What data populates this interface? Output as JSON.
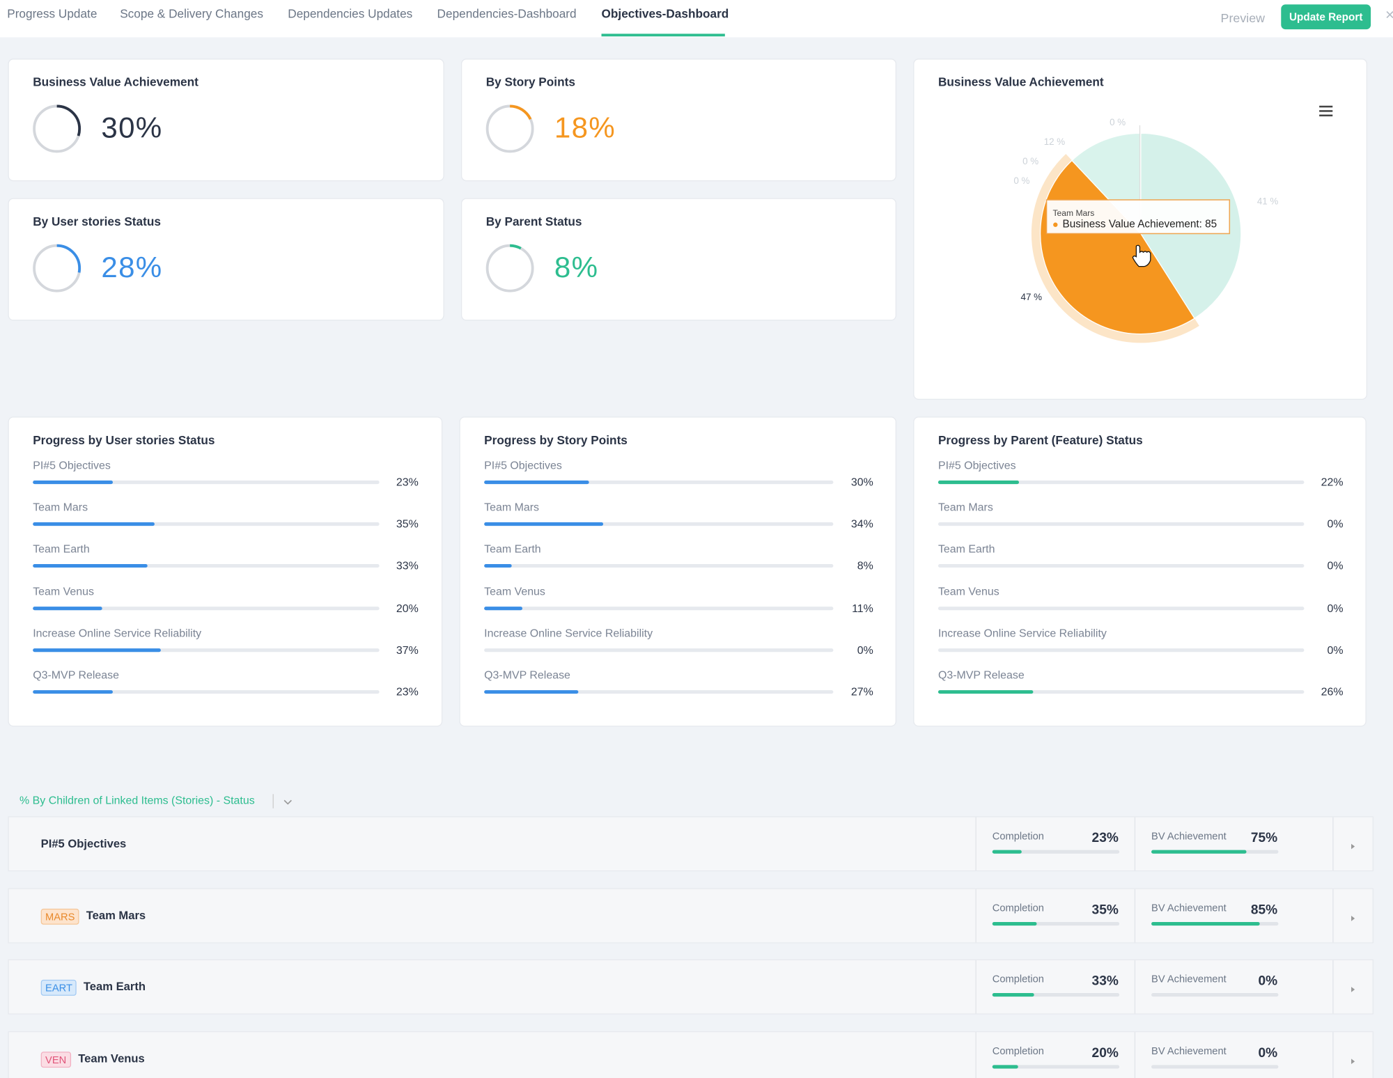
{
  "nav": {
    "tabs": [
      "Progress Update",
      "Scope & Delivery Changes",
      "Dependencies Updates",
      "Dependencies-Dashboard",
      "Objectives-Dashboard"
    ],
    "active": 4,
    "preview": "Preview",
    "button": "Update Report"
  },
  "kpis": [
    {
      "title": "Business Value Achievement",
      "value": {
        "value": 30,
        "label": "30%"
      },
      "color": "#2b3446"
    },
    {
      "title": "By Story Points",
      "value": {
        "value": 18,
        "label": "18%"
      },
      "color": "#f5961f"
    },
    {
      "title": "By User stories Status",
      "value": {
        "value": 28,
        "label": "28%"
      },
      "color": "#3a8ee6"
    },
    {
      "title": "By Parent Status",
      "value": {
        "value": 8,
        "label": "8%"
      },
      "color": "#2dbd8f"
    }
  ],
  "pie": {
    "title": "Business Value Achievement",
    "slices": [
      {
        "value": 41,
        "label": "41 %",
        "color": "#d5f1ea"
      },
      {
        "value": 47,
        "label": "47 %",
        "color": "#f5961f"
      },
      {
        "value": 0,
        "label": "0 %",
        "color": "#d5f1ea"
      },
      {
        "value": 0,
        "label": "0 %",
        "color": "#d5f1ea"
      },
      {
        "value": 12,
        "label": "12 %",
        "color": "#d9f3ec"
      },
      {
        "value": 0,
        "label": "0 %",
        "color": "#d5f1ea"
      }
    ],
    "tooltip": {
      "title": "Team Mars",
      "text": "Business Value Achievement: 85"
    }
  },
  "progress": [
    {
      "title": "Progress by User stories Status",
      "color": "#3a8ee6",
      "items": [
        {
          "name": "PI#5 Objectives",
          "value": {
            "value": 23,
            "label": "23%"
          }
        },
        {
          "name": "Team Mars",
          "value": {
            "value": 35,
            "label": "35%"
          }
        },
        {
          "name": "Team Earth",
          "value": {
            "value": 33,
            "label": "33%"
          }
        },
        {
          "name": "Team Venus",
          "value": {
            "value": 20,
            "label": "20%"
          }
        },
        {
          "name": "Increase Online Service Reliability",
          "value": {
            "value": 37,
            "label": "37%"
          }
        },
        {
          "name": "Q3-MVP Release",
          "value": {
            "value": 23,
            "label": "23%"
          }
        }
      ]
    },
    {
      "title": "Progress by Story Points",
      "color": "#3a8ee6",
      "items": [
        {
          "name": "PI#5 Objectives",
          "value": {
            "value": 30,
            "label": "30%"
          }
        },
        {
          "name": "Team Mars",
          "value": {
            "value": 34,
            "label": "34%"
          }
        },
        {
          "name": "Team Earth",
          "value": {
            "value": 8,
            "label": "8%"
          }
        },
        {
          "name": "Team Venus",
          "value": {
            "value": 11,
            "label": "11%"
          }
        },
        {
          "name": "Increase Online Service Reliability",
          "value": {
            "value": 0,
            "label": "0%"
          }
        },
        {
          "name": "Q3-MVP Release",
          "value": {
            "value": 27,
            "label": "27%"
          }
        }
      ]
    },
    {
      "title": "Progress by Parent (Feature) Status",
      "color": "#2dbd8f",
      "items": [
        {
          "name": "PI#5 Objectives",
          "value": {
            "value": 22,
            "label": "22%"
          }
        },
        {
          "name": "Team Mars",
          "value": {
            "value": 0,
            "label": "0%"
          }
        },
        {
          "name": "Team Earth",
          "value": {
            "value": 0,
            "label": "0%"
          }
        },
        {
          "name": "Team Venus",
          "value": {
            "value": 0,
            "label": "0%"
          }
        },
        {
          "name": "Increase Online Service Reliability",
          "value": {
            "value": 0,
            "label": "0%"
          }
        },
        {
          "name": "Q3-MVP Release",
          "value": {
            "value": 26,
            "label": "26%"
          }
        }
      ]
    }
  ],
  "section": {
    "title": "% By Children of Linked Items (Stories) - Status",
    "completion": "Completion",
    "bv": "BV Achievement",
    "rows": [
      {
        "name": "PI#5 Objectives",
        "completion": {
          "value": 23,
          "label": "23%"
        },
        "bv": {
          "value": 75,
          "label": "75%"
        }
      },
      {
        "tag": "MARS",
        "name": "Team Mars",
        "completion": {
          "value": 35,
          "label": "35%"
        },
        "bv": {
          "value": 85,
          "label": "85%"
        }
      },
      {
        "tag": "EART",
        "name": "Team Earth",
        "completion": {
          "value": 33,
          "label": "33%"
        },
        "bv": {
          "value": 0,
          "label": "0%"
        }
      },
      {
        "tag": "VEN",
        "name": "Team Venus",
        "completion": {
          "value": 20,
          "label": "20%"
        },
        "bv": {
          "value": 0,
          "label": "0%"
        }
      }
    ]
  }
}
